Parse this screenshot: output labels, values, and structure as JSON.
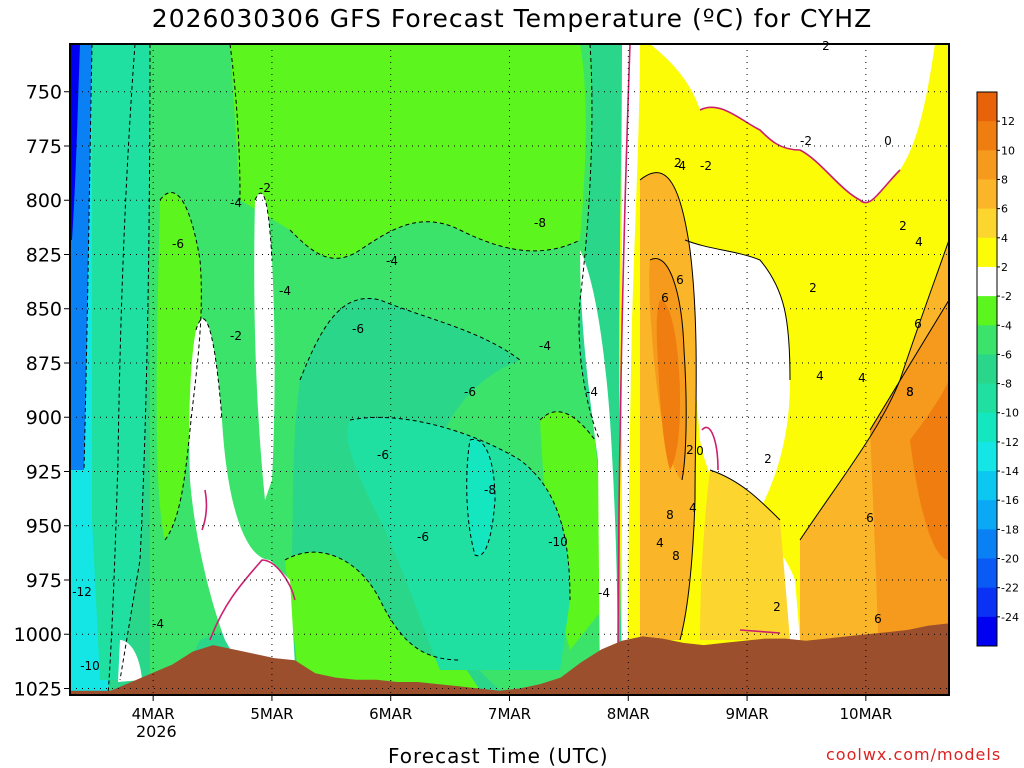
{
  "chart_data": {
    "type": "heatmap",
    "title": "2026030306 GFS Forecast Temperature (ºC) for CYHZ",
    "xlabel": "Forecast Time (UTC)",
    "ylabel": "",
    "credit": "coolwx.com/models",
    "x_ticks": [
      "4MAR",
      "5MAR",
      "6MAR",
      "7MAR",
      "8MAR",
      "9MAR",
      "10MAR"
    ],
    "x_year_label": "2026",
    "y_ticks": [
      750,
      775,
      800,
      825,
      850,
      875,
      900,
      925,
      950,
      975,
      1000,
      1025
    ],
    "y_range": [
      1028,
      728
    ],
    "x_range_days": [
      -0.7,
      6.7
    ],
    "colorbar": {
      "labels": [
        "12",
        "10",
        "8",
        "6",
        "4",
        "2",
        "-2",
        "-4",
        "-6",
        "-8",
        "-10",
        "-12",
        "-14",
        "-16",
        "-18",
        "-20",
        "-22",
        "-24"
      ],
      "colors": [
        "#e8620a",
        "#f07d0f",
        "#f59a1c",
        "#fab528",
        "#fcd52f",
        "#fcfc06",
        "#ffffff",
        "#5cf51e",
        "#3be36b",
        "#2ad68a",
        "#1fe0a0",
        "#14e6c0",
        "#14e6e6",
        "#0cc8f0",
        "#0aa8f5",
        "#0a80f5",
        "#0a5af5",
        "#0a32f5",
        "#0000f0"
      ]
    },
    "contour_labels": [
      "-12",
      "-10",
      "-4",
      "-6",
      "-4",
      "-2",
      "-2",
      "-4",
      "-6",
      "-4",
      "-6",
      "-6",
      "-6",
      "-8",
      "-10",
      "-8",
      "-4",
      "-4",
      "-4",
      "-2",
      "-4",
      "-2",
      "0",
      "0",
      "2",
      "2",
      "2",
      "2",
      "2",
      "2",
      "2",
      "4",
      "4",
      "4",
      "4",
      "4",
      "6",
      "6",
      "6",
      "6",
      "6",
      "8",
      "8",
      "8",
      "8"
    ],
    "surface_profile_hpa": [
      1026,
      1026,
      1026,
      1022,
      1018,
      1014,
      1008,
      1005,
      1007,
      1009,
      1011,
      1012,
      1018,
      1020,
      1021,
      1021,
      1022,
      1022,
      1023,
      1024,
      1025,
      1026,
      1025,
      1023,
      1020,
      1013,
      1007,
      1003,
      1001,
      1002,
      1004,
      1005,
      1004,
      1003,
      1002,
      1002,
      1003,
      1002,
      1001,
      1000,
      999,
      998,
      996,
      995
    ]
  }
}
